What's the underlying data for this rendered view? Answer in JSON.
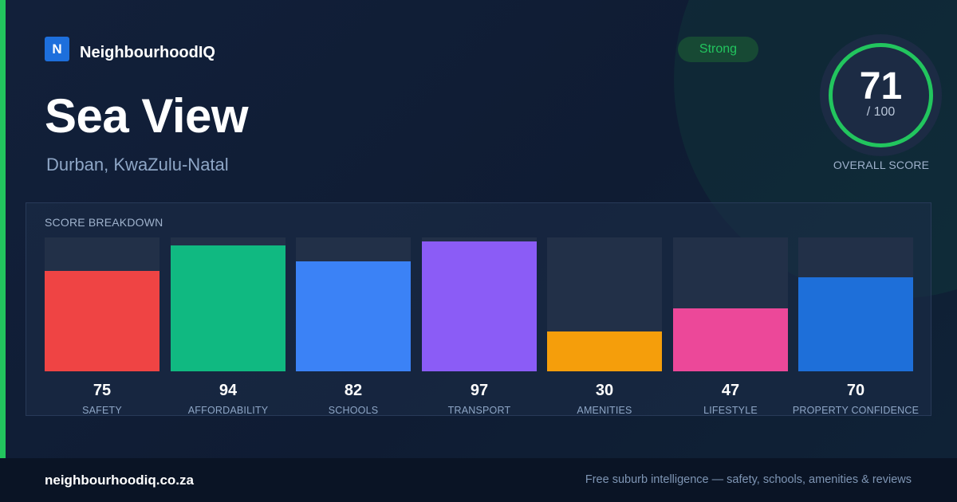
{
  "brand": {
    "logo_letter": "N",
    "name": "NeighbourhoodIQ"
  },
  "suburb": {
    "name": "Sea View",
    "location": "Durban, KwaZulu-Natal"
  },
  "badge": {
    "label": "Strong",
    "color": "#22c55e"
  },
  "overall": {
    "score": "71",
    "max_label": "/ 100",
    "label": "OVERALL SCORE",
    "fraction": 0.71,
    "ring_color": "#22c55e"
  },
  "breakdown": {
    "title": "SCORE BREAKDOWN"
  },
  "chart_data": {
    "type": "bar",
    "title": "SCORE BREAKDOWN",
    "categories": [
      "SAFETY",
      "AFFORDABILITY",
      "SCHOOLS",
      "TRANSPORT",
      "AMENITIES",
      "LIFESTYLE",
      "PROPERTY CONFIDENCE"
    ],
    "values": [
      75,
      94,
      82,
      97,
      30,
      47,
      70
    ],
    "colors": [
      "#ef4444",
      "#10b981",
      "#3b82f6",
      "#8b5cf6",
      "#f59e0b",
      "#ec4899",
      "#1e6fd9"
    ],
    "ylim": [
      0,
      100
    ],
    "xlabel": "",
    "ylabel": ""
  },
  "footer": {
    "site": "neighbourhoodiq.co.za",
    "tagline": "Free suburb intelligence — safety, schools, amenities & reviews"
  },
  "theme": {
    "accent": "#22c55e",
    "background": "#0f1b31",
    "footer_bg": "#0a1425"
  }
}
